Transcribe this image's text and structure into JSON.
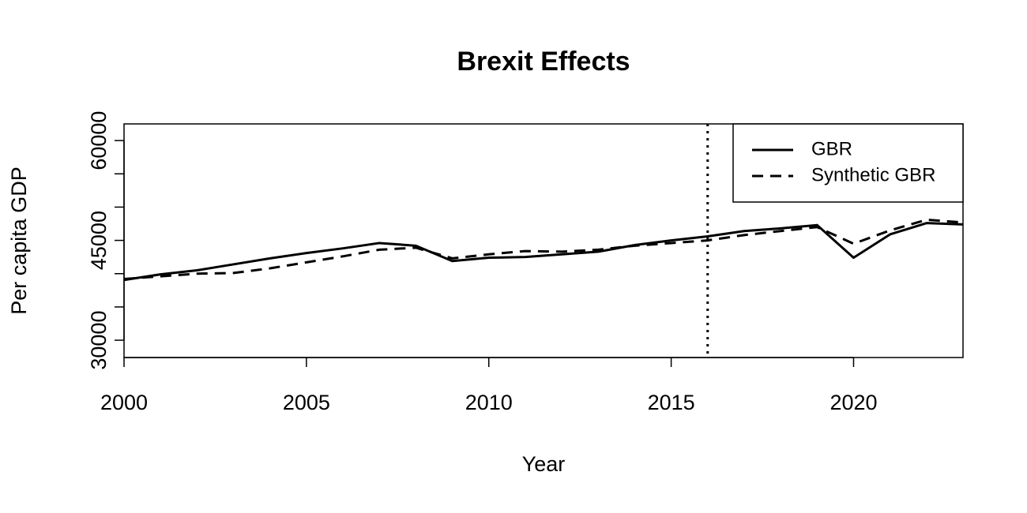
{
  "chart_data": {
    "type": "line",
    "title": "Brexit Effects",
    "x_label": "Year",
    "y_label": "Per capita GDP",
    "x": [
      2000,
      2001,
      2002,
      2003,
      2004,
      2005,
      2006,
      2007,
      2008,
      2009,
      2010,
      2011,
      2012,
      2013,
      2014,
      2015,
      2016,
      2017,
      2018,
      2019,
      2020,
      2021,
      2022,
      2023
    ],
    "series": [
      {
        "name": "GBR",
        "color": "#000000",
        "dash": "solid",
        "values": [
          39050,
          39900,
          40500,
          41400,
          42300,
          43100,
          43800,
          44600,
          44200,
          41900,
          42400,
          42500,
          42900,
          43300,
          44300,
          45000,
          45600,
          46400,
          46800,
          47300,
          42400,
          45900,
          47600,
          47400
        ]
      },
      {
        "name": "Synthetic GBR",
        "color": "#000000",
        "dash": "dashed",
        "values": [
          39200,
          39600,
          40000,
          40100,
          40800,
          41700,
          42600,
          43600,
          43900,
          42300,
          42900,
          43400,
          43300,
          43600,
          44200,
          44600,
          45000,
          45800,
          46400,
          47000,
          44500,
          46500,
          48100,
          47700
        ]
      }
    ],
    "xlim": [
      2000,
      2023
    ],
    "xticks": [
      2000,
      2005,
      2010,
      2015,
      2020
    ],
    "ylim": [
      27400,
      62500
    ],
    "yticks": [
      30000,
      45000,
      60000
    ],
    "yminorticks": [
      35000,
      40000,
      50000,
      55000
    ],
    "vline": 2016,
    "vline_style": "dotted",
    "legend": "top-right",
    "grid": false
  }
}
